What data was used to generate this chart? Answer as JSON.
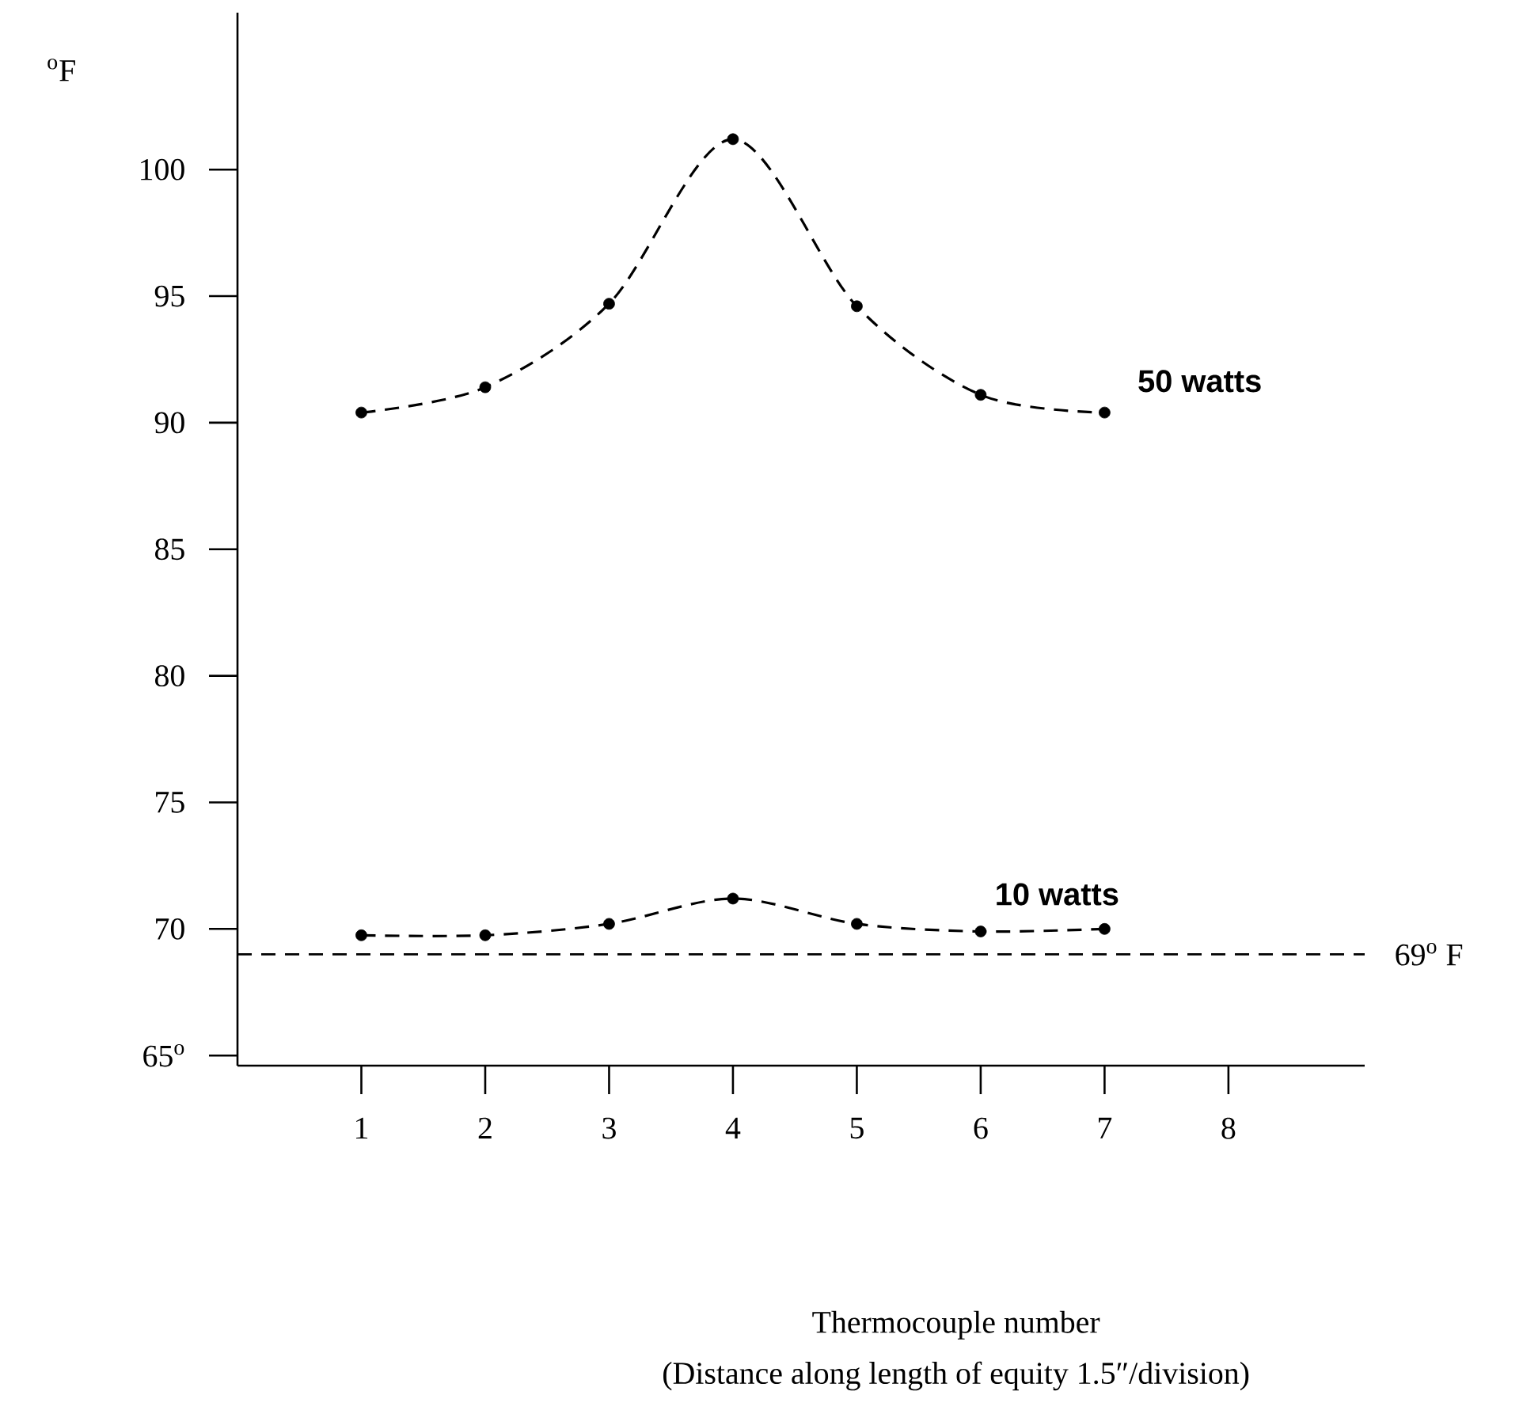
{
  "chart_data": {
    "type": "line",
    "ylabel": "$^{o}$F",
    "annotations": [
      "Thermocouple number",
      "(Distance along length of equity 1.5″/division)"
    ],
    "x": [
      1,
      2,
      3,
      4,
      5,
      6,
      7
    ],
    "series": [
      {
        "name": "50 watts",
        "color": "#000000",
        "values": [
          90.4,
          91.4,
          94.7,
          101.2,
          94.6,
          91.1,
          90.4
        ]
      },
      {
        "name": "10 watts",
        "color": "#000000",
        "values": [
          69.75,
          69.75,
          70.2,
          71.2,
          70.2,
          69.9,
          70.0
        ]
      }
    ],
    "xlim": [
      0,
      9.1
    ],
    "xticks": [
      1,
      2,
      3,
      4,
      5,
      6,
      7,
      8
    ],
    "ylim": [
      64.6,
      106.2
    ],
    "yticks": [
      {
        "value": 65,
        "label": "65$^{o}$"
      },
      70,
      75,
      80,
      85,
      90,
      95,
      100
    ],
    "ref_lines": [
      {
        "axis": "y",
        "value": 69,
        "label": "69$^{o}$ F",
        "line_style": "dashed"
      }
    ],
    "marker": "circle",
    "line_style": "dashed",
    "grid": false
  }
}
